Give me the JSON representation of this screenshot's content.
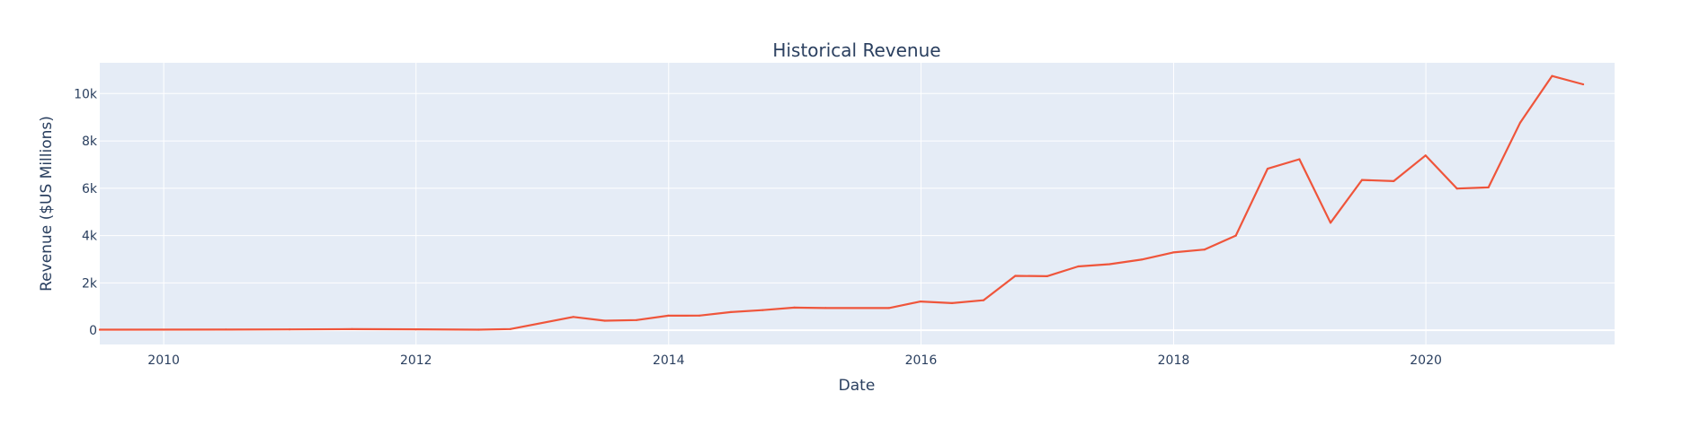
{
  "chart_data": {
    "type": "line",
    "title": "Historical Revenue",
    "xlabel": "Date",
    "ylabel": "Revenue ($US Millions)",
    "xlim": [
      "2009-06-30",
      "2021-06-30"
    ],
    "ylim": [
      -600,
      11300
    ],
    "x_ticks": [
      {
        "value": "2010-01-01",
        "label": "2010"
      },
      {
        "value": "2012-01-01",
        "label": "2012"
      },
      {
        "value": "2014-01-01",
        "label": "2014"
      },
      {
        "value": "2016-01-01",
        "label": "2016"
      },
      {
        "value": "2018-01-01",
        "label": "2018"
      },
      {
        "value": "2020-01-01",
        "label": "2020"
      }
    ],
    "y_ticks": [
      {
        "value": 0,
        "label": "0"
      },
      {
        "value": 2000,
        "label": "2k"
      },
      {
        "value": 4000,
        "label": "4k"
      },
      {
        "value": 6000,
        "label": "6k"
      },
      {
        "value": 8000,
        "label": "8k"
      },
      {
        "value": 10000,
        "label": "10k"
      }
    ],
    "grid": true,
    "plot_background": "#e5ecf6",
    "series": [
      {
        "color": "#ef553b",
        "points": [
          {
            "x": "2009-06-30",
            "y": 27
          },
          {
            "x": "2010-06-30",
            "y": 28
          },
          {
            "x": "2010-12-31",
            "y": 36
          },
          {
            "x": "2011-06-30",
            "y": 49
          },
          {
            "x": "2011-12-31",
            "y": 39
          },
          {
            "x": "2012-06-30",
            "y": 27
          },
          {
            "x": "2012-09-30",
            "y": 50
          },
          {
            "x": "2013-03-31",
            "y": 562
          },
          {
            "x": "2013-06-30",
            "y": 405
          },
          {
            "x": "2013-09-30",
            "y": 431
          },
          {
            "x": "2013-12-31",
            "y": 615
          },
          {
            "x": "2014-03-31",
            "y": 621
          },
          {
            "x": "2014-06-30",
            "y": 769
          },
          {
            "x": "2014-09-30",
            "y": 852
          },
          {
            "x": "2014-12-31",
            "y": 957
          },
          {
            "x": "2015-03-31",
            "y": 940
          },
          {
            "x": "2015-09-30",
            "y": 937
          },
          {
            "x": "2015-12-31",
            "y": 1214
          },
          {
            "x": "2016-03-31",
            "y": 1147
          },
          {
            "x": "2016-06-30",
            "y": 1270
          },
          {
            "x": "2016-09-30",
            "y": 2298
          },
          {
            "x": "2016-12-31",
            "y": 2285
          },
          {
            "x": "2017-03-31",
            "y": 2696
          },
          {
            "x": "2017-06-30",
            "y": 2790
          },
          {
            "x": "2017-09-30",
            "y": 2985
          },
          {
            "x": "2017-12-31",
            "y": 3288
          },
          {
            "x": "2018-03-31",
            "y": 3409
          },
          {
            "x": "2018-06-30",
            "y": 4002
          },
          {
            "x": "2018-09-30",
            "y": 6824
          },
          {
            "x": "2018-12-31",
            "y": 7226
          },
          {
            "x": "2019-03-31",
            "y": 4541
          },
          {
            "x": "2019-06-30",
            "y": 6350
          },
          {
            "x": "2019-09-30",
            "y": 6303
          },
          {
            "x": "2019-12-31",
            "y": 7384
          },
          {
            "x": "2020-03-31",
            "y": 5985
          },
          {
            "x": "2020-06-30",
            "y": 6036
          },
          {
            "x": "2020-09-30",
            "y": 8771
          },
          {
            "x": "2020-12-31",
            "y": 10744
          },
          {
            "x": "2021-03-31",
            "y": 10389
          }
        ]
      }
    ]
  }
}
